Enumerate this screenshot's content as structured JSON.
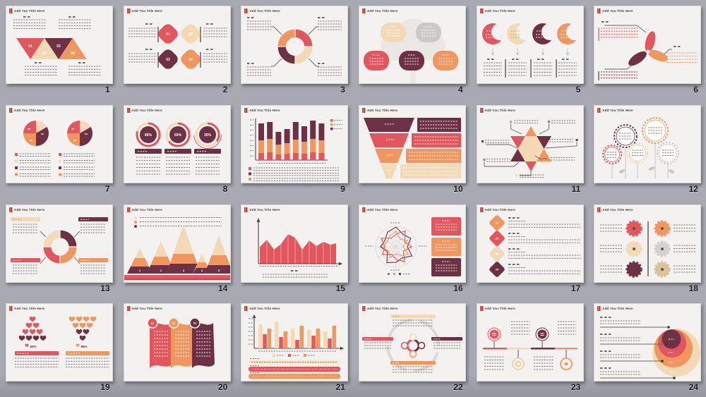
{
  "palette": {
    "red": "#e2565e",
    "cream": "#f4dab4",
    "maroon": "#6e3044",
    "orange": "#f0965f",
    "gray": "#cbc9c7",
    "slide_bg": "#f4f2f0",
    "page_bg": "#a9aab1"
  },
  "slide_title": "Add You Title Here",
  "slides": [
    {
      "number": "1",
      "graphic": "triangle-banner",
      "labels": [
        "01",
        "02",
        "03",
        "04"
      ]
    },
    {
      "number": "2",
      "graphic": "diamond-badges",
      "labels": [
        "01",
        "02",
        "03",
        "04"
      ]
    },
    {
      "number": "3",
      "graphic": "puzzle-donut-callouts"
    },
    {
      "number": "4",
      "graphic": "tree-nodes"
    },
    {
      "number": "5",
      "graphic": "crescent-columns"
    },
    {
      "number": "6",
      "graphic": "petal-propeller"
    },
    {
      "number": "7",
      "graphic": "twin-pie-charts"
    },
    {
      "number": "8",
      "graphic": "progress-rings",
      "labels": [
        "80%",
        "65%",
        "35%"
      ]
    },
    {
      "number": "9",
      "graphic": "stacked-bar-chart"
    },
    {
      "number": "10",
      "graphic": "funnel-list"
    },
    {
      "number": "11",
      "graphic": "hexagram-callouts"
    },
    {
      "number": "12",
      "graphic": "flower-circles"
    },
    {
      "number": "13",
      "graphic": "donut-with-tables"
    },
    {
      "number": "14",
      "graphic": "mountain-layers",
      "labels": [
        "1",
        "2",
        "3",
        "4",
        "5"
      ]
    },
    {
      "number": "15",
      "graphic": "area-chart"
    },
    {
      "number": "16",
      "graphic": "radar-chart"
    },
    {
      "number": "17",
      "graphic": "diamond-step-list",
      "labels": [
        "01",
        "02",
        "03",
        "04"
      ]
    },
    {
      "number": "18",
      "graphic": "gear-matrix"
    },
    {
      "number": "19",
      "graphic": "heart-pyramids",
      "labels": [
        "60%",
        "85%"
      ]
    },
    {
      "number": "20",
      "graphic": "wave-banners",
      "labels": [
        "01",
        "02",
        "03"
      ]
    },
    {
      "number": "21",
      "graphic": "grouped-bar-chart"
    },
    {
      "number": "22",
      "graphic": "cycle-tables"
    },
    {
      "number": "23",
      "graphic": "timeline-markers"
    },
    {
      "number": "24",
      "graphic": "concentric-circles"
    }
  ]
}
